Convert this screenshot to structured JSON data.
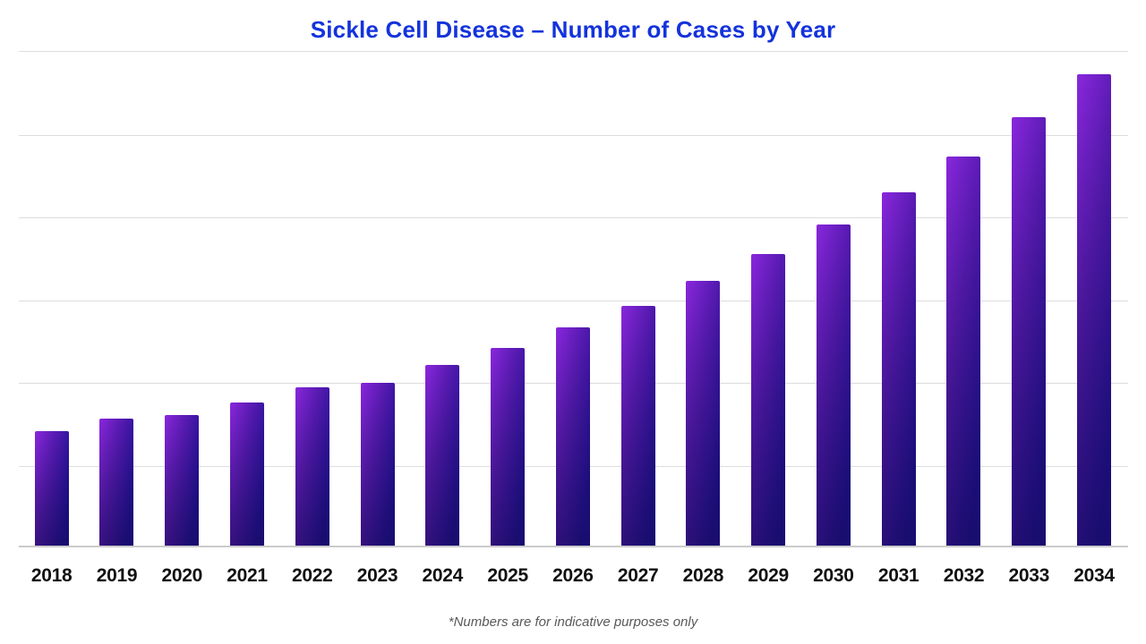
{
  "chart": {
    "title": "Sickle Cell Disease – Number of Cases by Year",
    "footnote": "*Numbers are for indicative purposes only"
  },
  "colors": {
    "background": "#FFFFFF",
    "title": "#1433DC",
    "bar_top_left": "#8A27DD",
    "bar_mid": "#5A1BB4",
    "bar_bottom_right": "#221298",
    "gridline": "#DDDDDD",
    "axis_line": "#CBCBCB",
    "x_label": "#111111",
    "footnote": "#595959"
  },
  "chart_data": {
    "type": "bar",
    "title": "Sickle Cell Disease – Number of Cases by Year",
    "categories": [
      "2018",
      "2019",
      "2020",
      "2021",
      "2022",
      "2023",
      "2024",
      "2025",
      "2026",
      "2027",
      "2028",
      "2029",
      "2030",
      "2031",
      "2032",
      "2033",
      "2034"
    ],
    "values": [
      1.38,
      1.53,
      1.58,
      1.73,
      1.91,
      1.97,
      2.18,
      2.39,
      2.64,
      2.9,
      3.2,
      3.52,
      3.88,
      4.27,
      4.7,
      5.18,
      5.7
    ],
    "value_note": "Y-axis has no numeric tick labels; values estimated in gridline units (1 unit = one horizontal gridline interval; plot spans 6 units from baseline to top gridline)",
    "xlabel": "",
    "ylabel": "",
    "ylim": [
      0,
      6
    ],
    "grid": "horizontal gridlines, unlabeled",
    "legend": "none",
    "bar_style": "diagonal gradient, violet-purple at top-left to dark navy at bottom-right",
    "footnote": "*Numbers are for indicative purposes only"
  }
}
